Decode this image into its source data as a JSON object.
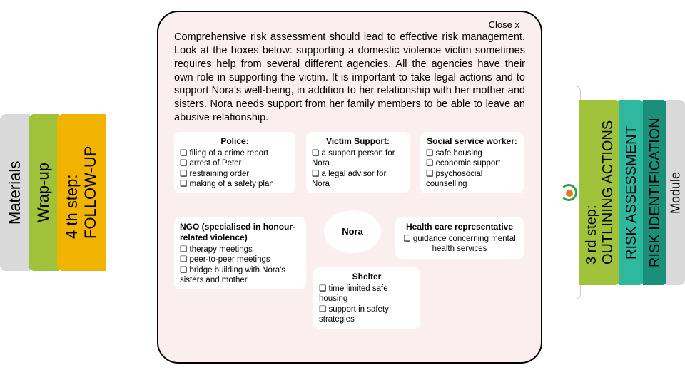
{
  "leftTabs": {
    "materials": "Materials",
    "wrapup": "Wrap-up",
    "followup": "4 th step:\nFOLLOW-UP"
  },
  "rightTabs": {
    "step3": "3 rd step:\nOUTLINING ACTIONS",
    "assess": "RISK ASSESSMENT",
    "ident": "RISK IDENTIFICATION",
    "module": "Module"
  },
  "popup": {
    "close": "Close x",
    "intro": "Comprehensive risk assessment should lead to effective risk management. Look at the boxes below: supporting a domestic violence victim sometimes requires help from several different agencies. All the agencies have their own role in supporting the victim. It is important to take legal actions and to support Nora's well-being, in addition to her relationship with her mother and sisters. Nora needs support from her family members to be able to leave an abusive relationship.",
    "police": {
      "title": "Police:",
      "items": [
        "filing of a crime report",
        "arrest of Peter",
        "restraining order",
        "making of a safety plan"
      ]
    },
    "victim": {
      "title": "Victim Support:",
      "items": [
        "a support person for Nora",
        "a legal advisor for Nora"
      ]
    },
    "social": {
      "title": "Social service worker:",
      "items": [
        "safe housing",
        "economic support",
        "psychosocial counselling"
      ]
    },
    "ngo": {
      "title": "NGO (specialised in honour-related violence)",
      "items": [
        "therapy meetings",
        "peer-to-peer meetings",
        "bridge building with Nora's sisters and mother"
      ]
    },
    "nora": "Nora",
    "health": {
      "title": "Health care representative",
      "items": [
        "guidance concerning mental health services"
      ]
    },
    "shelter": {
      "title": "Shelter",
      "items": [
        "time limited safe housing",
        "support in safety strategies"
      ]
    }
  },
  "colors": {
    "leftGrey": "#d9d9d9",
    "leftGreen": "#a0c23a",
    "leftYellow": "#f0b400",
    "rightTeal": "#2fb8a0",
    "rightDarkTeal": "#1a8f7a",
    "popupBg": "#fbeeee"
  }
}
